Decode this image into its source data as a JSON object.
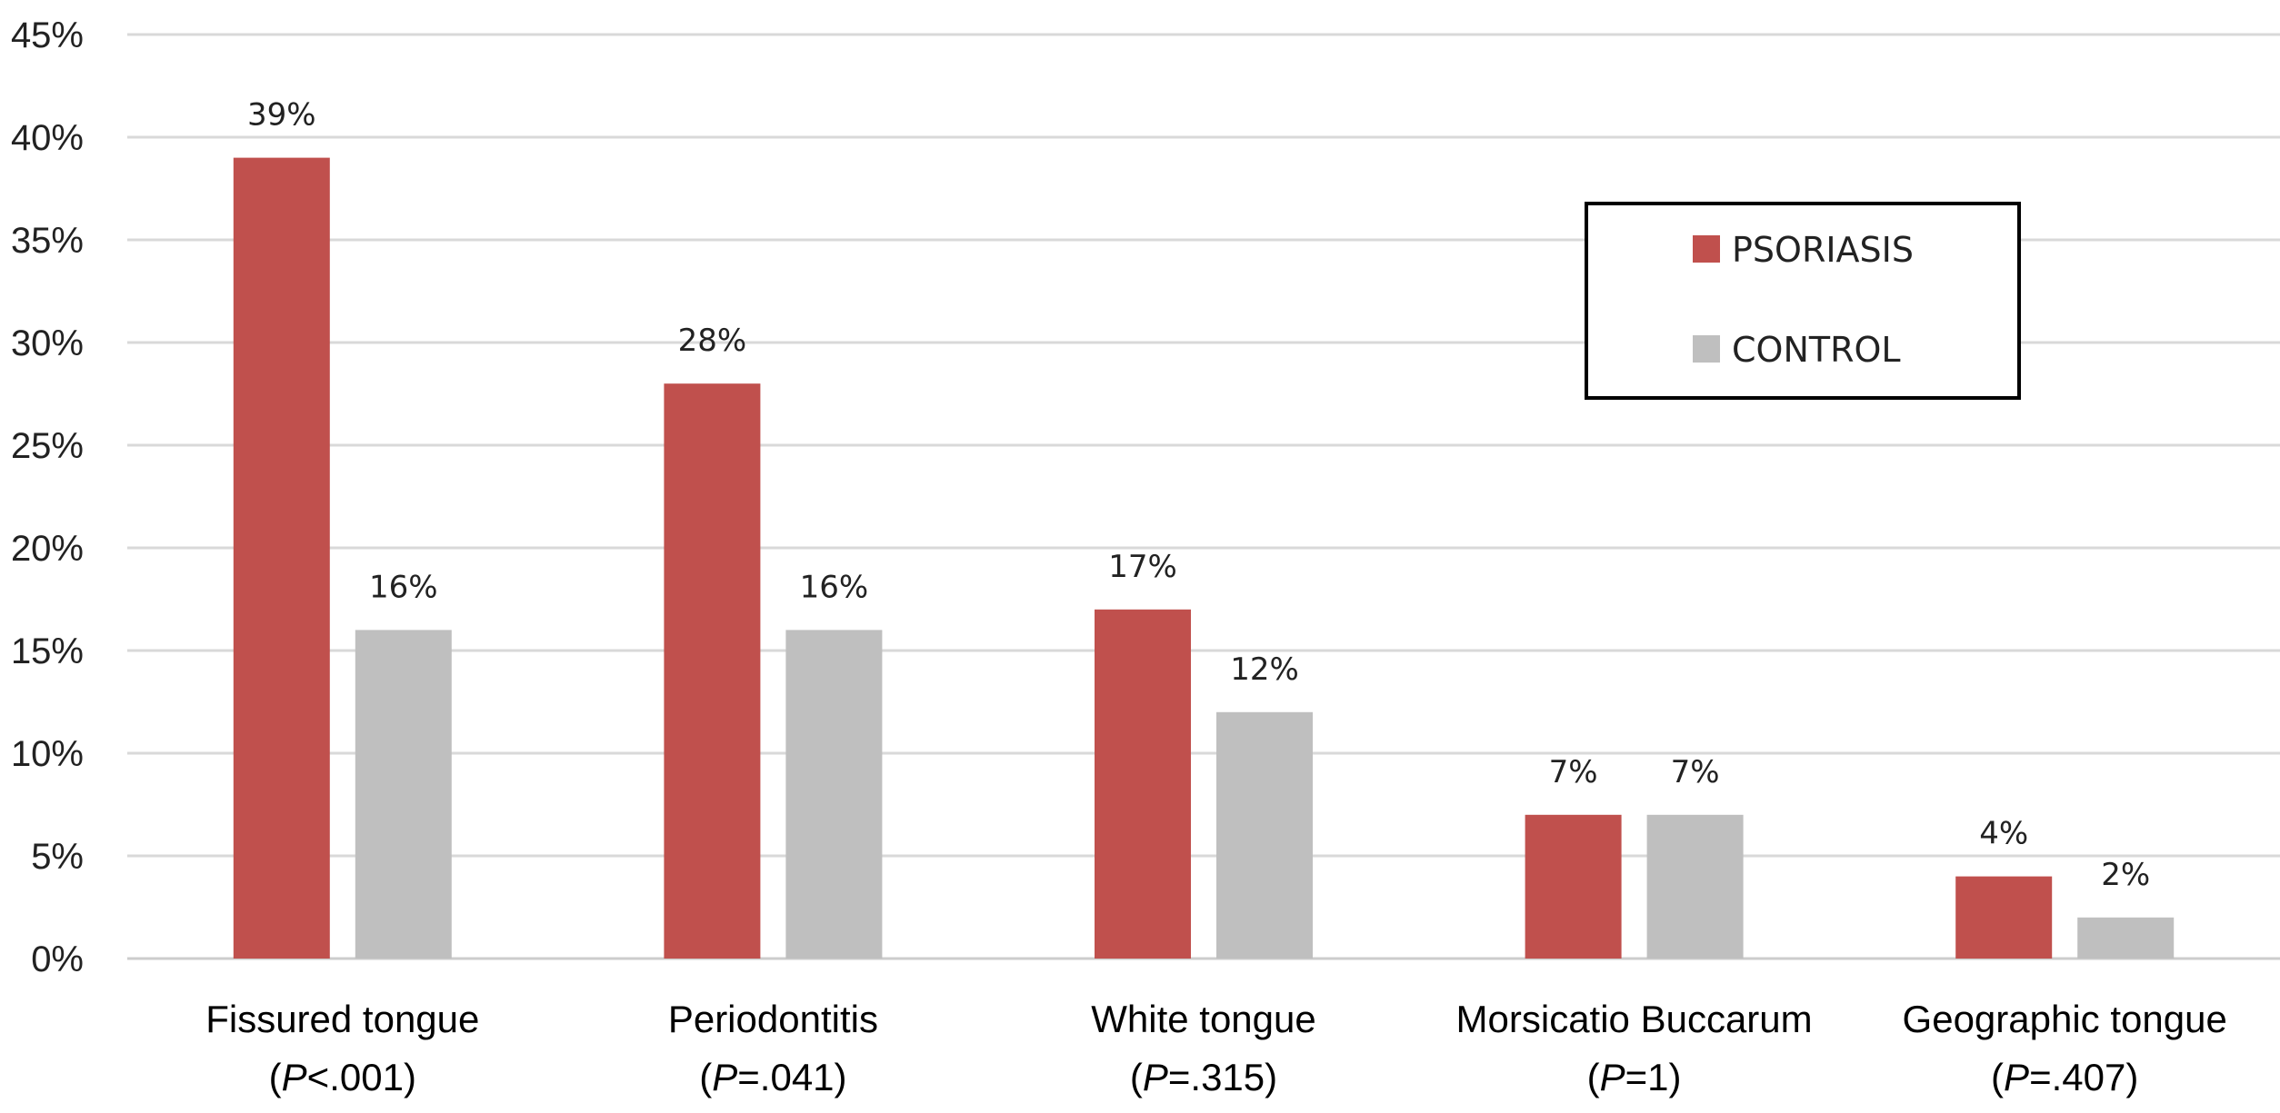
{
  "chart_data": {
    "type": "bar",
    "categories": [
      {
        "name": "Fissured tongue",
        "p_prefix": "(",
        "p_italic": "P",
        "p_value": "<.001)"
      },
      {
        "name": "Periodontitis",
        "p_prefix": "(",
        "p_italic": "P",
        "p_value": "=.041)"
      },
      {
        "name": "White tongue",
        "p_prefix": "(",
        "p_italic": "P",
        "p_value": "=.315)"
      },
      {
        "name": "Morsicatio Buccarum",
        "p_prefix": "(",
        "p_italic": "P",
        "p_value": "=1)"
      },
      {
        "name": "Geographic tongue",
        "p_prefix": "(",
        "p_italic": "P",
        "p_value": "=.407)"
      }
    ],
    "series": [
      {
        "name": "PSORIASIS",
        "color": "#c0504d",
        "values": [
          39,
          28,
          17,
          7,
          4
        ],
        "labels": [
          "39%",
          "28%",
          "17%",
          "7%",
          "4%"
        ]
      },
      {
        "name": "CONTROL",
        "color": "#bfbfbf",
        "values": [
          16,
          16,
          12,
          7,
          2
        ],
        "labels": [
          "16%",
          "16%",
          "12%",
          "7%",
          "2%"
        ]
      }
    ],
    "y_ticks": [
      "0%",
      "5%",
      "10%",
      "15%",
      "20%",
      "25%",
      "30%",
      "35%",
      "40%",
      "45%"
    ],
    "ylim": [
      0,
      45
    ],
    "grid": true,
    "gridline_color": "#d9d9d9",
    "legend_position": "top-right"
  }
}
